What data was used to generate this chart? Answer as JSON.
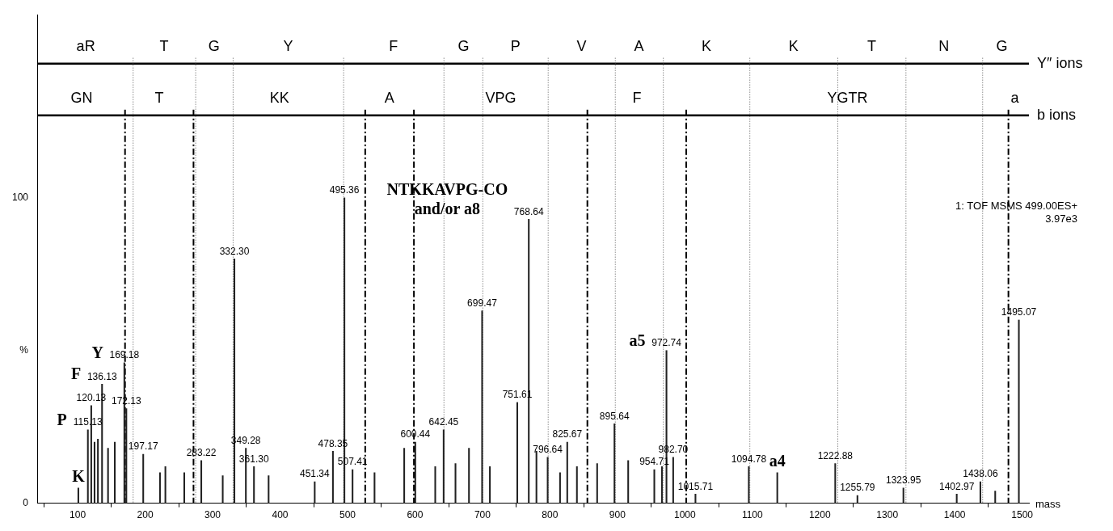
{
  "chart_data": {
    "type": "bar",
    "xlabel": "mass",
    "xlim": [
      40,
      1510
    ],
    "xticks": [
      100,
      200,
      300,
      400,
      500,
      600,
      700,
      800,
      900,
      1000,
      1100,
      1200,
      1300,
      1400,
      1500
    ],
    "ylim": [
      0,
      160
    ],
    "yticks": [
      0,
      {
        "value": 50,
        "label": "%"
      },
      100
    ],
    "grid": false,
    "legend": false,
    "series": [
      {
        "color": "#222222",
        "x": [
          101,
          115.13,
          120.13,
          125,
          130,
          136.13,
          145,
          155,
          169.18,
          172.13,
          197.17,
          222,
          230,
          258,
          283.22,
          315,
          332.3,
          349.28,
          361.3,
          383,
          451.34,
          478.35,
          495.36,
          507.41,
          540,
          584,
          600.44,
          630,
          642.45,
          660,
          680,
          699.47,
          711,
          751.61,
          768.64,
          780,
          796.64,
          815,
          825.67,
          840,
          870,
          895.64,
          916,
          954.71,
          966,
          972.74,
          982.7,
          1015.71,
          1094.78,
          1137,
          1222.88,
          1255.79,
          1323.95,
          1402.97,
          1438.06,
          1460,
          1495.07
        ],
        "values": [
          5,
          24,
          32,
          20,
          21,
          39,
          18,
          20,
          46,
          31,
          16,
          10,
          12,
          10,
          14,
          9,
          80,
          18,
          12,
          9,
          7,
          17,
          100,
          11,
          10,
          18,
          20,
          12,
          24,
          13,
          18,
          63,
          12,
          33,
          93,
          17,
          15,
          10,
          20,
          12,
          13,
          26,
          14,
          11,
          12,
          50,
          15,
          3,
          12,
          10,
          13,
          2.5,
          5,
          3,
          7,
          4,
          60
        ]
      }
    ],
    "ref_lines": [
      {
        "axis": "y",
        "value": 144,
        "label": "Y″ ions",
        "color": "#000000",
        "line_style": "solid"
      },
      {
        "axis": "y",
        "value": 127,
        "label": "b ions",
        "color": "#000000",
        "line_style": "solid"
      },
      {
        "axis": "x",
        "value": 182.2,
        "color": "#555555",
        "line_style": "dotted"
      },
      {
        "axis": "x",
        "value": 274.9,
        "color": "#555555",
        "line_style": "dotted"
      },
      {
        "axis": "x",
        "value": 330.4,
        "color": "#555555",
        "line_style": "dotted"
      },
      {
        "axis": "x",
        "value": 494.2,
        "color": "#555555",
        "line_style": "dotted"
      },
      {
        "axis": "x",
        "value": 642.9,
        "color": "#555555",
        "line_style": "dotted"
      },
      {
        "axis": "x",
        "value": 700.5,
        "color": "#555555",
        "line_style": "dotted"
      },
      {
        "axis": "x",
        "value": 797.4,
        "color": "#555555",
        "line_style": "dotted"
      },
      {
        "axis": "x",
        "value": 896.9,
        "color": "#555555",
        "line_style": "dotted"
      },
      {
        "axis": "x",
        "value": 968.1,
        "color": "#555555",
        "line_style": "dotted"
      },
      {
        "axis": "x",
        "value": 1096.3,
        "color": "#555555",
        "line_style": "dotted"
      },
      {
        "axis": "x",
        "value": 1226.7,
        "color": "#555555",
        "line_style": "dotted"
      },
      {
        "axis": "x",
        "value": 1327.7,
        "color": "#555555",
        "line_style": "dotted"
      },
      {
        "axis": "x",
        "value": 1441.4,
        "color": "#555555",
        "line_style": "dotted"
      },
      {
        "axis": "x",
        "value": 170.2,
        "color": "#000000",
        "line_style": "dashed"
      },
      {
        "axis": "x",
        "value": 271.7,
        "color": "#000000",
        "line_style": "dashed"
      },
      {
        "axis": "x",
        "value": 526.2,
        "color": "#000000",
        "line_style": "dashed"
      },
      {
        "axis": "x",
        "value": 598.4,
        "color": "#000000",
        "line_style": "dashed"
      },
      {
        "axis": "x",
        "value": 855.5,
        "color": "#000000",
        "line_style": "dashed"
      },
      {
        "axis": "x",
        "value": 1002,
        "color": "#000000",
        "line_style": "dashed"
      },
      {
        "axis": "x",
        "value": 1479.6,
        "color": "#000000",
        "line_style": "dashed"
      }
    ],
    "annotations": [
      {
        "text": "115.13",
        "x": 115.13,
        "y": 24
      },
      {
        "text": "120.13",
        "x": 120.13,
        "y": 32
      },
      {
        "text": "136.13",
        "x": 136.13,
        "y": 39
      },
      {
        "text": "169.18",
        "x": 169.18,
        "y": 46
      },
      {
        "text": "172.13",
        "x": 172.13,
        "y": 31
      },
      {
        "text": "197.17",
        "x": 197.17,
        "y": 16
      },
      {
        "text": "283.22",
        "x": 283.22,
        "y": 14
      },
      {
        "text": "332.30",
        "x": 332.3,
        "y": 80
      },
      {
        "text": "349.28",
        "x": 349.28,
        "y": 18
      },
      {
        "text": "361.30",
        "x": 361.3,
        "y": 12
      },
      {
        "text": "451.34",
        "x": 451.34,
        "y": 7
      },
      {
        "text": "478.35",
        "x": 478.35,
        "y": 17
      },
      {
        "text": "495.36",
        "x": 495.36,
        "y": 100
      },
      {
        "text": "507.41",
        "x": 507.41,
        "y": 11
      },
      {
        "text": "600.44",
        "x": 600.44,
        "y": 20
      },
      {
        "text": "642.45",
        "x": 642.45,
        "y": 24
      },
      {
        "text": "699.47",
        "x": 699.47,
        "y": 63
      },
      {
        "text": "751.61",
        "x": 751.61,
        "y": 33
      },
      {
        "text": "768.64",
        "x": 768.64,
        "y": 93
      },
      {
        "text": "796.64",
        "x": 796.64,
        "y": 15
      },
      {
        "text": "825.67",
        "x": 825.67,
        "y": 20
      },
      {
        "text": "895.64",
        "x": 895.64,
        "y": 26
      },
      {
        "text": "954.71",
        "x": 954.71,
        "y": 11
      },
      {
        "text": "972.74",
        "x": 972.74,
        "y": 50
      },
      {
        "text": "982.70",
        "x": 982.7,
        "y": 15
      },
      {
        "text": "1015.71",
        "x": 1015.71,
        "y": 3
      },
      {
        "text": "1094.78",
        "x": 1094.78,
        "y": 12
      },
      {
        "text": "1222.88",
        "x": 1222.88,
        "y": 13
      },
      {
        "text": "1255.79",
        "x": 1255.79,
        "y": 2.5
      },
      {
        "text": "1323.95",
        "x": 1323.95,
        "y": 5
      },
      {
        "text": "1402.97",
        "x": 1402.97,
        "y": 3
      },
      {
        "text": "1438.06",
        "x": 1438.06,
        "y": 7
      },
      {
        "text": "1495.07",
        "x": 1495.07,
        "y": 60
      },
      {
        "text": "K",
        "x": 101,
        "y": 5
      },
      {
        "text": "P",
        "x": 115.13,
        "y": 24
      },
      {
        "text": "F",
        "x": 136.13,
        "y": 39
      },
      {
        "text": "Y",
        "x": 169.18,
        "y": 46
      },
      {
        "text": "NTKKAVPG-CO and/or a8",
        "x": 768.64,
        "y": 93
      },
      {
        "text": "a5",
        "x": 972.74,
        "y": 50
      },
      {
        "text": "a4",
        "x": 1137,
        "y": 10
      },
      {
        "text": "aR",
        "x": 112,
        "y": 144
      },
      {
        "text": "T",
        "x": 228,
        "y": 144
      },
      {
        "text": "G",
        "x": 302,
        "y": 144
      },
      {
        "text": "Y",
        "x": 412,
        "y": 144
      },
      {
        "text": "F",
        "x": 568,
        "y": 144
      },
      {
        "text": "G",
        "x": 672,
        "y": 144
      },
      {
        "text": "P",
        "x": 749,
        "y": 144
      },
      {
        "text": "V",
        "x": 847,
        "y": 144
      },
      {
        "text": "A",
        "x": 932,
        "y": 144
      },
      {
        "text": "K",
        "x": 1032,
        "y": 144
      },
      {
        "text": "K",
        "x": 1161,
        "y": 144
      },
      {
        "text": "T",
        "x": 1277,
        "y": 144
      },
      {
        "text": "N",
        "x": 1384,
        "y": 144
      },
      {
        "text": "G",
        "x": 1470,
        "y": 144
      },
      {
        "text": "GN",
        "x": 106,
        "y": 127
      },
      {
        "text": "T",
        "x": 221,
        "y": 127
      },
      {
        "text": "KK",
        "x": 399,
        "y": 127
      },
      {
        "text": "A",
        "x": 562,
        "y": 127
      },
      {
        "text": "VPG",
        "x": 727,
        "y": 127
      },
      {
        "text": "F",
        "x": 929,
        "y": 127
      },
      {
        "text": "YGTR",
        "x": 1241,
        "y": 127
      },
      {
        "text": "a",
        "x": 1489,
        "y": 127
      },
      "1: TOF MSMS 499.00ES+",
      "3.97e3"
    ]
  }
}
